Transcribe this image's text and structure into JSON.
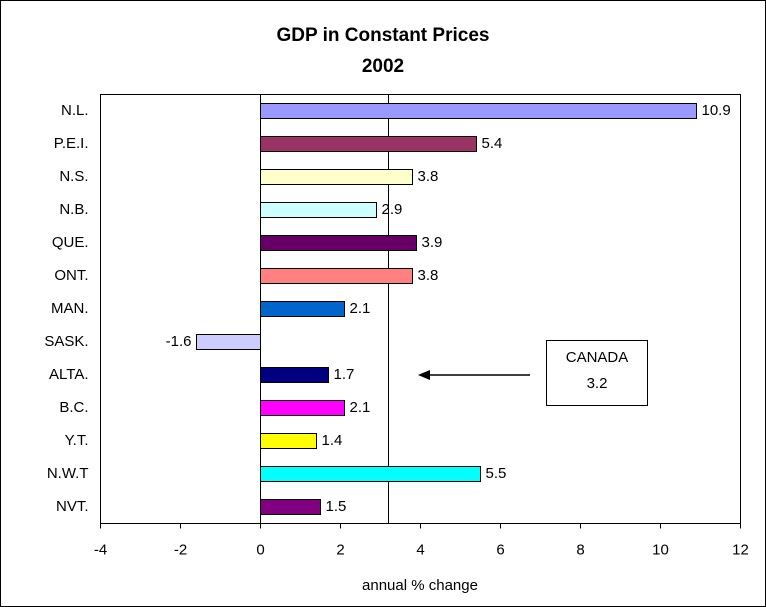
{
  "chart_data": {
    "type": "hbar",
    "title": "GDP in Constant Prices",
    "subtitle": "2002",
    "x_label": "annual % change",
    "categories": [
      "N.L.",
      "P.E.I.",
      "N.S.",
      "N.B.",
      "QUE.",
      "ONT.",
      "MAN.",
      "SASK.",
      "ALTA.",
      "B.C.",
      "Y.T.",
      "N.W.T",
      "NVT."
    ],
    "values": [
      10.9,
      5.4,
      3.8,
      2.9,
      3.9,
      3.8,
      2.1,
      -1.6,
      1.7,
      2.1,
      1.4,
      5.5,
      1.5
    ],
    "colors": [
      "#9999ff",
      "#993366",
      "#ffffcc",
      "#ccffff",
      "#660066",
      "#ff8080",
      "#0066cc",
      "#ccccff",
      "#000080",
      "#ff00ff",
      "#ffff00",
      "#00ffff",
      "#800080"
    ],
    "xlim": [
      -4,
      12
    ],
    "xticks": [
      -4,
      -2,
      0,
      2,
      4,
      6,
      8,
      10,
      12
    ],
    "reference": {
      "label": "CANADA",
      "value": 3.2
    }
  }
}
